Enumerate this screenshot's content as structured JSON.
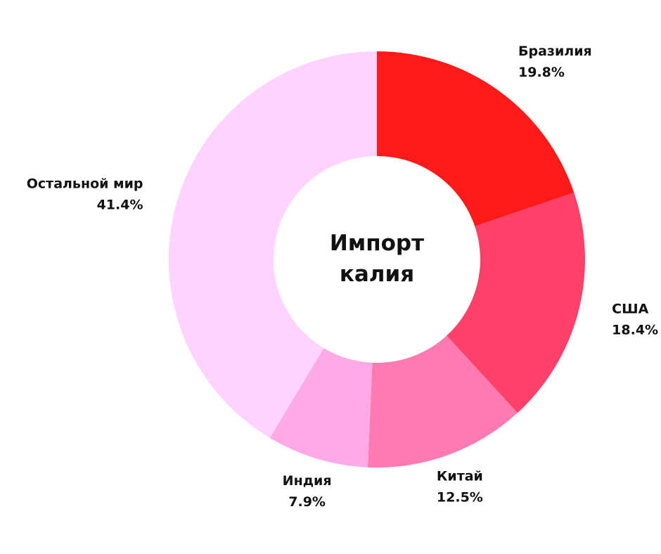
{
  "chart_data": {
    "type": "donut",
    "title": "Импорт калия",
    "categories": [
      "Бразилия",
      "США",
      "Китай",
      "Индия",
      "Остальной мир"
    ],
    "values": [
      19.8,
      18.4,
      12.5,
      7.9,
      41.4
    ],
    "value_labels": [
      "19.8%",
      "18.4%",
      "12.5%",
      "7.9%",
      "41.4%"
    ],
    "colors": [
      "#ff1a1a",
      "#ff4069",
      "#ff7ab0",
      "#ffaae6",
      "#ffd2ff"
    ]
  }
}
